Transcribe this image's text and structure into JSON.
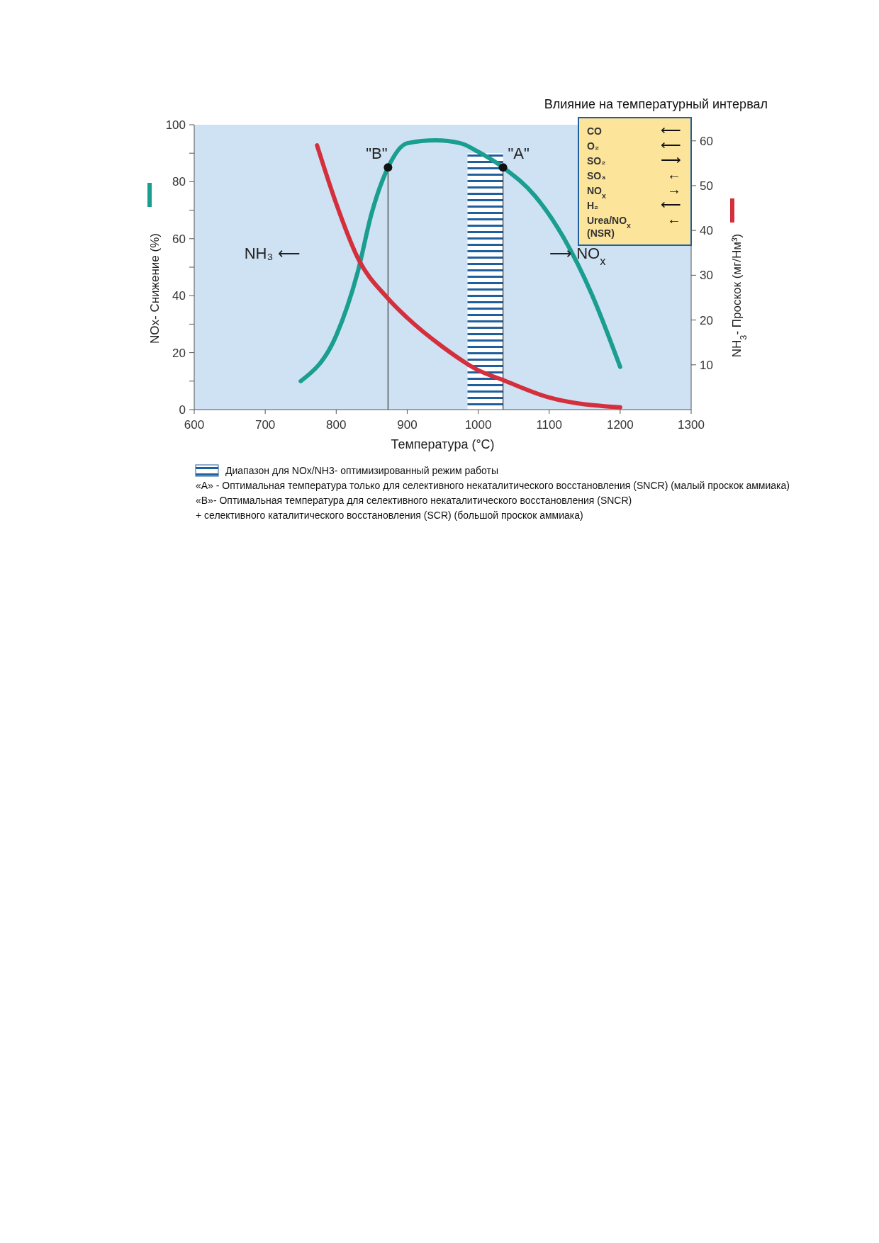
{
  "chart_data": {
    "type": "line",
    "title": "Влияние на температурный интервал",
    "xlabel": "Температура (°C)",
    "ylabel": "NOx- Снижение (%)",
    "y2label": "NH$_{3}$- Проскок (мг/Нм³)",
    "xlim": [
      600,
      1300
    ],
    "xticks": [
      600,
      700,
      800,
      900,
      1000,
      1100,
      1200,
      1300
    ],
    "ylim": [
      0,
      100
    ],
    "yticks": [
      0,
      {
        "value": 10,
        "label": null
      },
      20,
      {
        "value": 30,
        "label": null
      },
      40,
      {
        "value": 50,
        "label": null
      },
      60,
      {
        "value": 70,
        "label": null
      },
      80,
      {
        "value": 90,
        "label": null
      },
      100
    ],
    "y2lim": [
      0,
      63.6
    ],
    "y2ticks": [
      10,
      20,
      30,
      40,
      50,
      60
    ],
    "series": [
      {
        "color": "#1a9e8f",
        "x": [
          750,
          800,
          830,
          850,
          873,
          900,
          940,
          975,
          1000,
          1035,
          1080,
          1120,
          1160,
          1200
        ],
        "values": [
          10,
          26,
          48,
          69,
          85,
          93.5,
          94.5,
          93.5,
          90.5,
          85,
          75,
          60.5,
          40.5,
          15
        ]
      },
      {
        "color": "#d32f3c",
        "axis": "y2",
        "x": [
          773,
          800,
          830,
          873,
          900,
          950,
          1000,
          1035,
          1100,
          1200
        ],
        "values": [
          59,
          46,
          34,
          24.8,
          20.5,
          14,
          8.8,
          6.6,
          2.7,
          0.5
        ]
      }
    ],
    "bands": [
      {
        "axis": "x",
        "from": 985,
        "to": 1035,
        "label": "Диапазон для NOx/NH3- оптимизированный режим работы",
        "color": "#1f5f9e"
      }
    ],
    "ref_lines": [
      {
        "axis": "x",
        "value": 873,
        "label": "\"B\"",
        "color": "#333333"
      },
      {
        "axis": "x",
        "value": 1035,
        "label": "\"A\"",
        "color": "#333333"
      }
    ],
    "annotations": [
      "CO ⟵",
      "O₂ ⟵",
      "SO₂ ⟶",
      "SO₃ ←",
      "NO$_{x}$ →",
      "H₂ ⟵",
      "Urea/NO$_{x}$ (NSR) ←",
      "NH₃ ⟵",
      "⟶ NO$_{x}$",
      "«А» - Оптимальная температура только для селективного некаталитического восстановления (SNCR) (малый проскок аммиака)",
      "«В»- Оптимальная температура для селективного некаталитического восстановления (SNCR)",
      "+ селективного каталитического восстановления (SCR) (большой проскок аммиака)"
    ],
    "grid": false,
    "legend": "bottom",
    "marker": "none",
    "line_style": "solid"
  }
}
